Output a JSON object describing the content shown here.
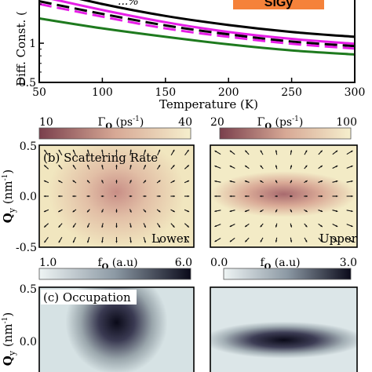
{
  "chart_data": [
    {
      "type": "line",
      "xlabel": "Temperature (K)",
      "ylabel": "Diff. Const. (",
      "xlim": [
        50,
        300
      ],
      "ylim": [
        0.5,
        2.4
      ],
      "yscale": "log",
      "xticks": [
        "50",
        "100",
        "150",
        "200",
        "250",
        "300"
      ],
      "yticks": [
        "0.5",
        "1"
      ],
      "annotations": {
        "top_left": "...%",
        "badge": "SiGy"
      },
      "colors": {
        "badge": "#f5823a"
      },
      "series": [
        {
          "color": "#000000",
          "style": "solid",
          "x": [
            50,
            100,
            150,
            200,
            250,
            300
          ],
          "y": [
            2.6,
            2.0,
            1.62,
            1.38,
            1.22,
            1.12
          ]
        },
        {
          "color": "#e61ee6",
          "style": "solid",
          "x": [
            50,
            100,
            150,
            200,
            250,
            300
          ],
          "y": [
            2.3,
            1.8,
            1.45,
            1.22,
            1.08,
            0.99
          ]
        },
        {
          "color": "#000000",
          "style": "dashed",
          "x": [
            50,
            100,
            150,
            200,
            250,
            300
          ],
          "y": [
            2.1,
            1.68,
            1.37,
            1.17,
            1.03,
            0.95
          ]
        },
        {
          "color": "#e61ee6",
          "style": "dashed",
          "x": [
            50,
            100,
            150,
            200,
            250,
            300
          ],
          "y": [
            2.0,
            1.6,
            1.3,
            1.12,
            0.99,
            0.91
          ]
        },
        {
          "color": "#1e7a1e",
          "style": "solid",
          "x": [
            50,
            100,
            150,
            200,
            250,
            300
          ],
          "y": [
            1.55,
            1.3,
            1.12,
            0.98,
            0.88,
            0.82
          ]
        }
      ]
    },
    {
      "type": "heatmap",
      "panel": "(b) Scattering Rate",
      "subplots": [
        "Lower",
        "Upper"
      ],
      "colorbars": [
        {
          "label": "Γ_Q (ps⁻¹)",
          "min": "10",
          "max": "40"
        },
        {
          "label": "Γ_Q (ps⁻¹)",
          "min": "20",
          "max": "100"
        }
      ],
      "ylabel": "Q_y (nm⁻¹)",
      "yticks": [
        "0.5",
        "0.0",
        "-0.5"
      ],
      "ylim": [
        -0.5,
        0.5
      ],
      "quiver": true
    },
    {
      "type": "heatmap",
      "panel": "(c) Occupation",
      "colorbars": [
        {
          "label": "f_Q (a.u)",
          "min": "1.0",
          "max": "6.0"
        },
        {
          "label": "f_Q (a.u)",
          "min": "0.0",
          "max": "3.0"
        }
      ],
      "ylabel": "Q_y (nm⁻¹)",
      "yticks": [
        "0.5",
        "0.0"
      ]
    }
  ],
  "text": {
    "gamma_label": "Γ",
    "q_sub": "Q",
    "unit_ps": " (ps",
    "unit_close": ")",
    "sup_minus1": "-1",
    "f_label": "f",
    "unit_au": " (a.u)",
    "qy_main": "Q",
    "qy_sub": "y",
    "qy_unit": " (nm",
    "panel_b": "(b) Scattering Rate",
    "panel_c": "(c) Occupation",
    "lower": "Lower",
    "upper": "Upper"
  }
}
